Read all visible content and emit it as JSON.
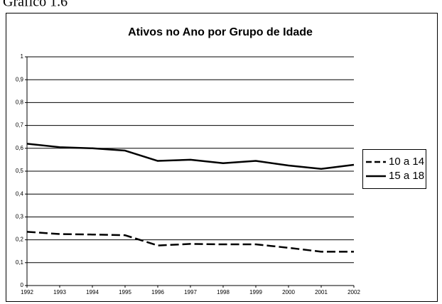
{
  "caption": "Gráfico 1.6",
  "chart_data": {
    "type": "line",
    "title": "Ativos no Ano por Grupo de Idade",
    "x": [
      1992,
      1993,
      1994,
      1995,
      1996,
      1997,
      1998,
      1999,
      2000,
      2001,
      2002
    ],
    "series": [
      {
        "name": "10 a 14",
        "color": "#000000",
        "style": "dashed",
        "values": [
          0.235,
          0.225,
          0.223,
          0.22,
          0.175,
          0.182,
          0.18,
          0.18,
          0.165,
          0.148,
          0.148
        ]
      },
      {
        "name": "15 a 18",
        "color": "#000000",
        "style": "solid",
        "values": [
          0.62,
          0.605,
          0.6,
          0.59,
          0.545,
          0.55,
          0.535,
          0.545,
          0.525,
          0.51,
          0.528
        ]
      }
    ],
    "xlim": [
      1992,
      2002
    ],
    "xticks": [
      1992,
      1993,
      1994,
      1995,
      1996,
      1997,
      1998,
      1999,
      2000,
      2001,
      2002
    ],
    "ylim": [
      0,
      1
    ],
    "yticks": [
      0,
      {
        "value": 0.1,
        "label": "0,1"
      },
      {
        "value": 0.2,
        "label": "0,2"
      },
      {
        "value": 0.3,
        "label": "0,3"
      },
      {
        "value": 0.4,
        "label": "0,4"
      },
      {
        "value": 0.5,
        "label": "0,5"
      },
      {
        "value": 0.6,
        "label": "0,6"
      },
      {
        "value": 0.7,
        "label": "0,7"
      },
      {
        "value": 0.8,
        "label": "0,8"
      },
      {
        "value": 0.9,
        "label": "0,9"
      },
      1
    ],
    "grid": true,
    "legend": "right"
  }
}
